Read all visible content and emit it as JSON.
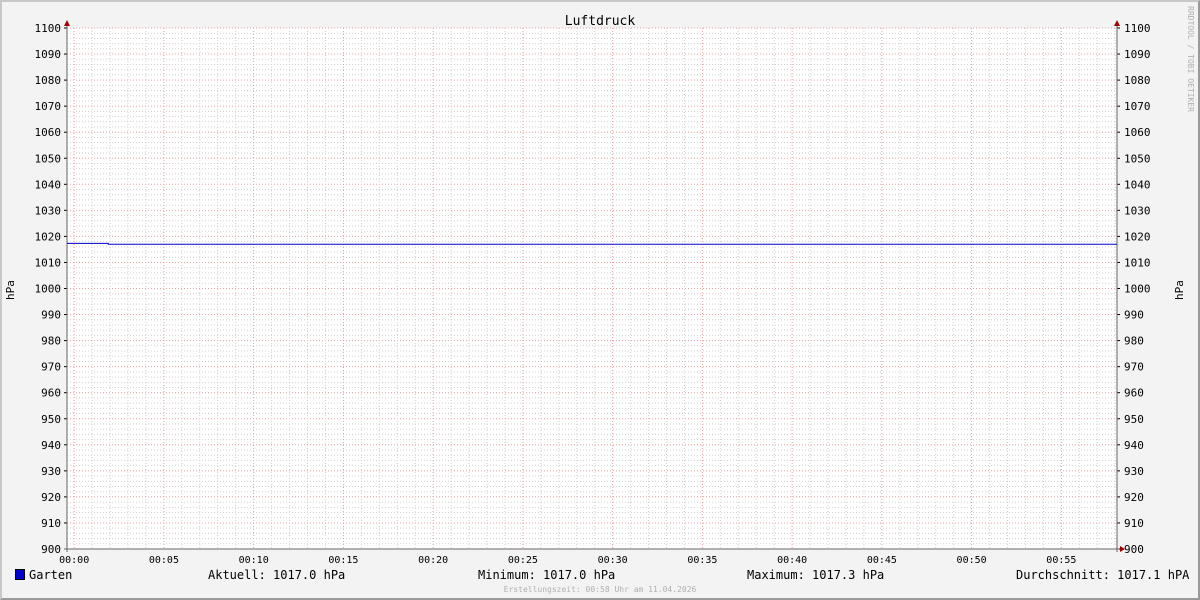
{
  "title": "Luftdruck",
  "watermark": "RRDTOOL / TOBI OETIKER",
  "footer": "Erstellungszeit: 00:58 Uhr am 11.04.2026",
  "chart_data": {
    "type": "line",
    "title": "Luftdruck",
    "ylabel": "hPa",
    "ylabel_right": "hPa",
    "ylim": [
      900,
      1100
    ],
    "yticks": [
      900,
      910,
      920,
      930,
      940,
      950,
      960,
      970,
      980,
      990,
      1000,
      1010,
      1020,
      1030,
      1040,
      1050,
      1060,
      1070,
      1080,
      1090,
      1100
    ],
    "xticks": [
      "00:00",
      "00:05",
      "00:10",
      "00:15",
      "00:20",
      "00:25",
      "00:30",
      "00:35",
      "00:40",
      "00:45",
      "00:50",
      "00:55"
    ],
    "xlim_minutes": [
      -0.4,
      58.1
    ],
    "grid": true,
    "series": [
      {
        "name": "Garten",
        "color": "#0000cc",
        "x_minutes": [
          -0.4,
          1.9,
          1.9,
          58.1
        ],
        "values": [
          1017.3,
          1017.3,
          1017.0,
          1017.0
        ]
      }
    ]
  },
  "legend": {
    "series_name": "Garten",
    "color": "#0000cc",
    "current": "Aktuell: 1017.0 hPa",
    "minimum": "Minimum: 1017.0 hPa",
    "maximum": "Maximum: 1017.3 hPa",
    "average": "Durchschnitt: 1017.1 hPA"
  }
}
